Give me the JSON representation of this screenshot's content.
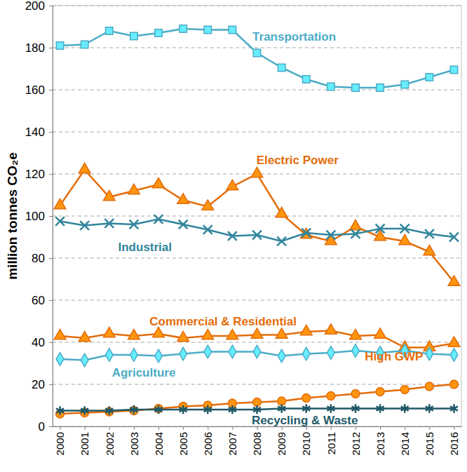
{
  "chart_data": {
    "type": "line",
    "y_label": "million tonnes CO₂e",
    "categories": [
      "2000",
      "2001",
      "2002",
      "2003",
      "2004",
      "2005",
      "2006",
      "2007",
      "2008",
      "2009",
      "2010",
      "2011",
      "2012",
      "2013",
      "2014",
      "2015",
      "2016"
    ],
    "ylim": [
      0,
      200
    ],
    "yticks": [
      0,
      20,
      40,
      60,
      80,
      100,
      120,
      140,
      160,
      180,
      200
    ],
    "grid": true,
    "series": [
      {
        "name": "Transportation",
        "color": "#4bacc6",
        "marker": "square",
        "values": [
          181,
          181.5,
          188,
          185.5,
          187,
          189,
          188.5,
          188.5,
          177.5,
          170.5,
          165,
          161.5,
          161,
          161,
          162.5,
          166,
          169.5
        ]
      },
      {
        "name": "Electric Power",
        "color": "#e46c0a",
        "marker": "triangle",
        "values": [
          105,
          122,
          109,
          112,
          115,
          107.5,
          104.5,
          114,
          120,
          101,
          91,
          88,
          95,
          90,
          88,
          83,
          68.5
        ]
      },
      {
        "name": "Industrial",
        "color": "#31859c",
        "marker": "x",
        "values": [
          97.5,
          95.5,
          96.5,
          96,
          98.5,
          96,
          93.5,
          90.5,
          91,
          88,
          92,
          91,
          91.5,
          94,
          94,
          91.5,
          90
        ]
      },
      {
        "name": "Commercial & Residential",
        "color": "#e46c0a",
        "marker": "triangle",
        "values": [
          43,
          42,
          44,
          43,
          44,
          42,
          43,
          43,
          43.5,
          43.5,
          45,
          45.5,
          43,
          43.5,
          37.5,
          37.5,
          39.5
        ]
      },
      {
        "name": "Agriculture",
        "color": "#4bacc6",
        "marker": "diamond",
        "values": [
          32,
          31.5,
          34,
          34,
          33.5,
          34.5,
          35.5,
          35.5,
          35.5,
          33.5,
          34.5,
          35,
          36,
          35,
          36,
          34.5,
          34
        ]
      },
      {
        "name": "High GWP",
        "color": "#e46c0a",
        "marker": "circle",
        "values": [
          6,
          6.5,
          7,
          7.5,
          8.5,
          9.5,
          10,
          11,
          11.5,
          12,
          13.5,
          14.5,
          15.5,
          16.5,
          17.5,
          19,
          20
        ]
      },
      {
        "name": "Recycling & Waste",
        "color": "#215968",
        "marker": "asterisk",
        "values": [
          7.5,
          7.5,
          7.5,
          8,
          8,
          8,
          8,
          8,
          8,
          8.5,
          8.5,
          8.5,
          8.5,
          8.5,
          8.5,
          8.5,
          8.5
        ]
      }
    ]
  }
}
